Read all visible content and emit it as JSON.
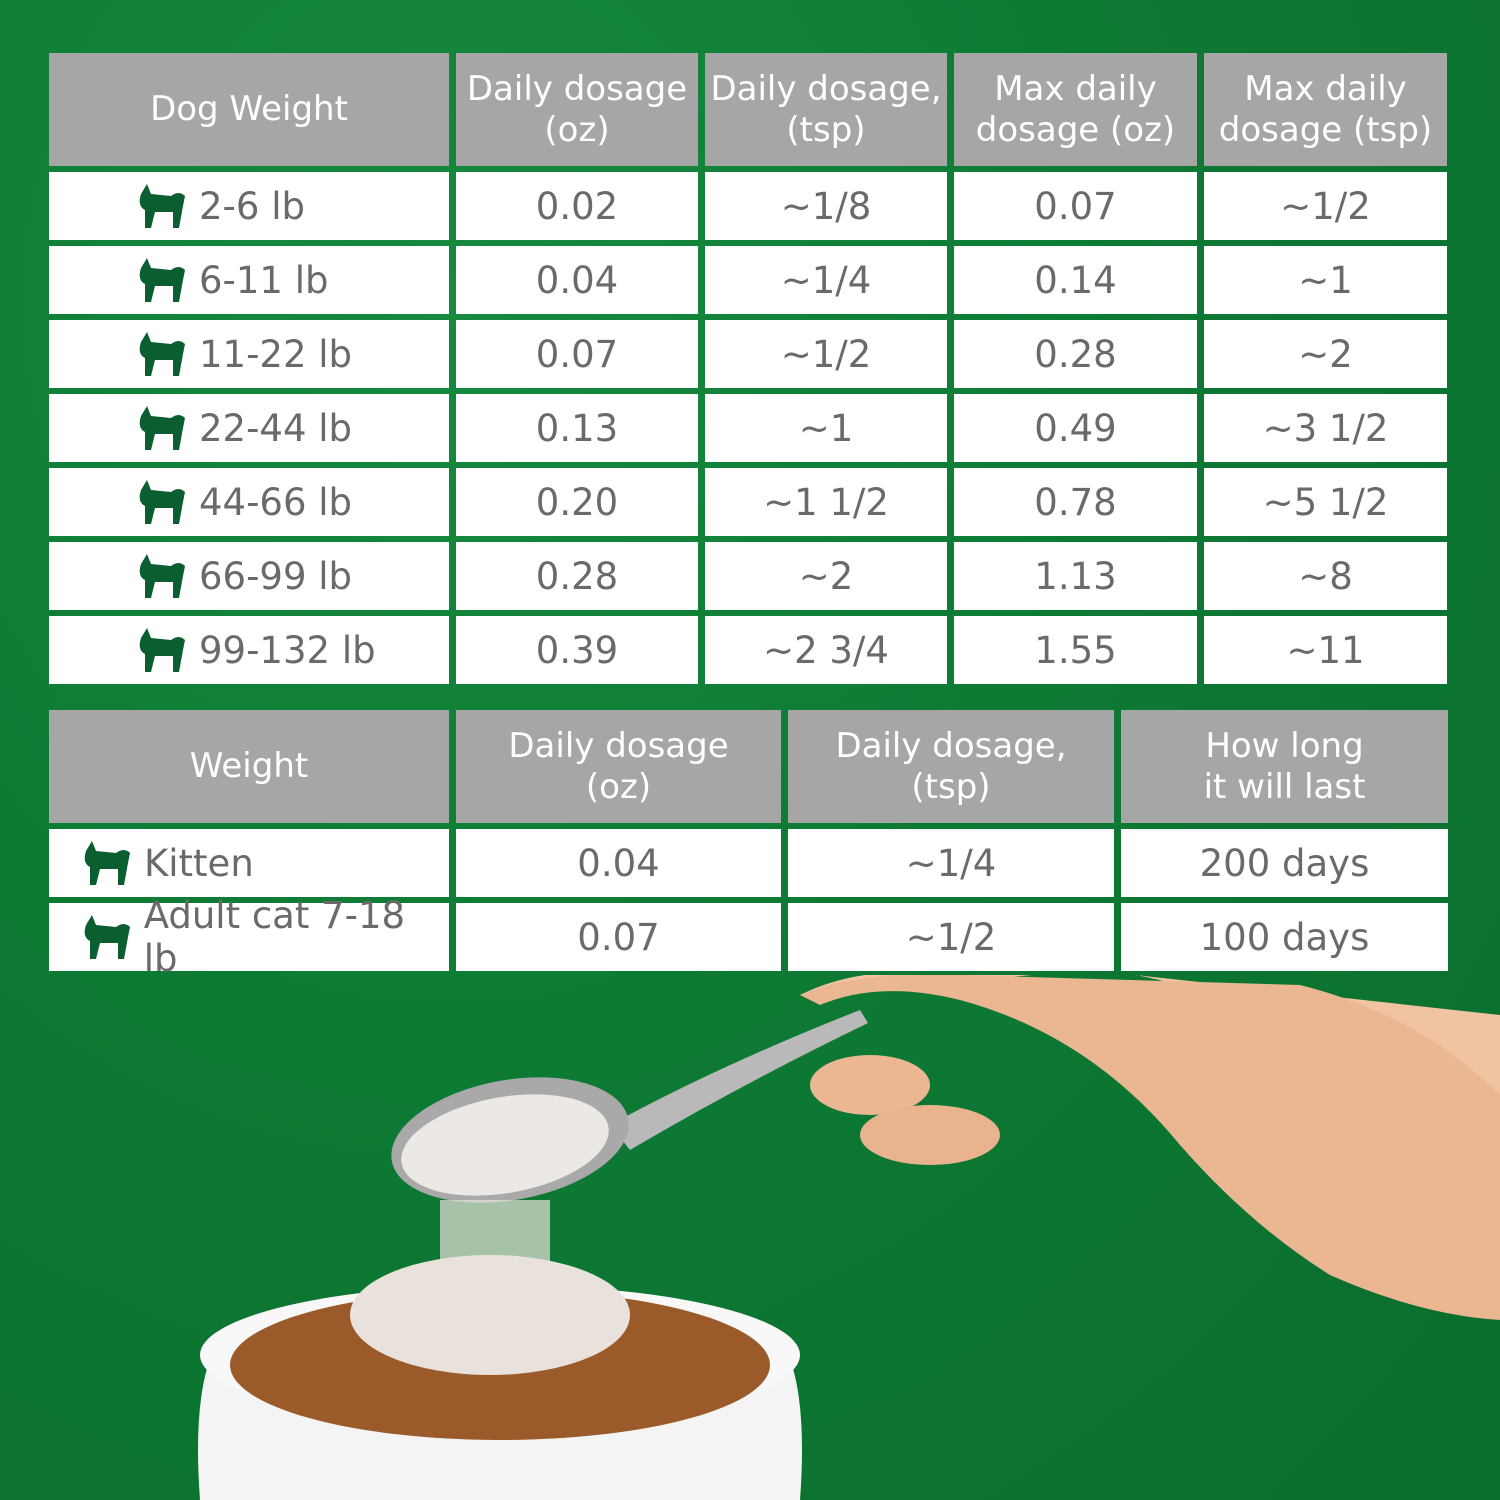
{
  "colors": {
    "background": "#0d7a34",
    "header": "#a6a6a6",
    "icon": "#0b5e30",
    "text": "#6a6a6a"
  },
  "dog_table": {
    "headers": [
      "Dog Weight",
      "Daily dosage\n(oz)",
      "Daily dosage,\n(tsp)",
      "Max daily\ndosage (oz)",
      "Max daily\ndosage (tsp)"
    ],
    "rows": [
      {
        "icon": "chihuahua-icon",
        "weight": "2-6 lb",
        "oz": "0.02",
        "tsp": "~1/8",
        "max_oz": "0.07",
        "max_tsp": "~1/2"
      },
      {
        "icon": "pomeranian-icon",
        "weight": "6-11 lb",
        "oz": "0.04",
        "tsp": "~1/4",
        "max_oz": "0.14",
        "max_tsp": "~1"
      },
      {
        "icon": "terrier-icon",
        "weight": "11-22 lb",
        "oz": "0.07",
        "tsp": "~1/2",
        "max_oz": "0.28",
        "max_tsp": "~2"
      },
      {
        "icon": "spaniel-icon",
        "weight": "22-44 lb",
        "oz": "0.13",
        "tsp": "~1",
        "max_oz": "0.49",
        "max_tsp": "~3 1/2"
      },
      {
        "icon": "chow-icon",
        "weight": "44-66 lb",
        "oz": "0.20",
        "tsp": "~1 1/2",
        "max_oz": "0.78",
        "max_tsp": "~5 1/2"
      },
      {
        "icon": "doberman-icon",
        "weight": "66-99 lb",
        "oz": "0.28",
        "tsp": "~2",
        "max_oz": "1.13",
        "max_tsp": "~8"
      },
      {
        "icon": "akita-icon",
        "weight": "99-132 lb",
        "oz": "0.39",
        "tsp": "~2 3/4",
        "max_oz": "1.55",
        "max_tsp": "~11"
      }
    ]
  },
  "cat_table": {
    "headers": [
      "Weight",
      "Daily dosage\n(oz)",
      "Daily dosage,\n(tsp)",
      "How long\nit will last"
    ],
    "rows": [
      {
        "icon": "kitten-icon",
        "weight": "Kitten",
        "oz": "0.04",
        "tsp": "~1/4",
        "duration": "200 days"
      },
      {
        "icon": "cat-icon",
        "weight": "Adult cat 7-18 lb",
        "oz": "0.07",
        "tsp": "~1/2",
        "duration": "100 days"
      }
    ]
  }
}
